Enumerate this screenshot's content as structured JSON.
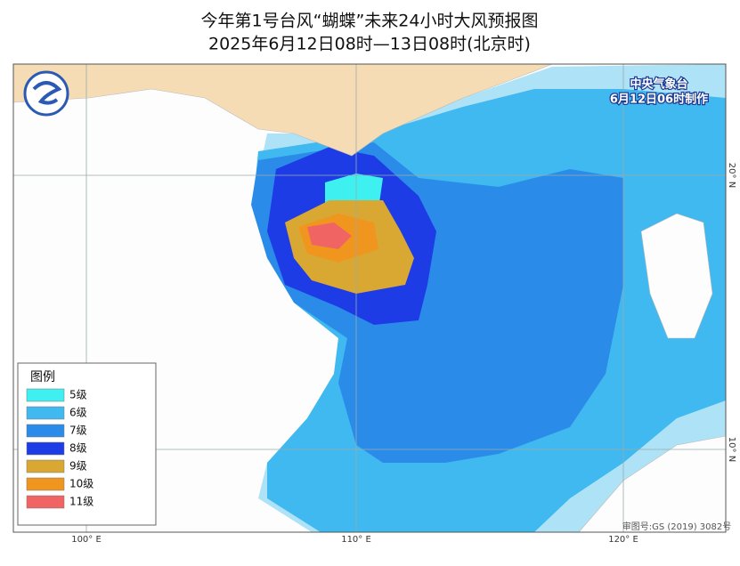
{
  "header": {
    "title": "今年第1号台风“蝴蝶”未来24小时大风预报图",
    "subtitle": "2025年6月12日08时—13日08时(北京时)",
    "agency": "中央气象台",
    "issued": "6月12日06时制作"
  },
  "legend": {
    "title": "图例",
    "items": [
      {
        "label": "5级",
        "color": "#3ff0f0"
      },
      {
        "label": "6级",
        "color": "#40b8f0"
      },
      {
        "label": "7级",
        "color": "#2a8ce8"
      },
      {
        "label": "8级",
        "color": "#1e3ce6"
      },
      {
        "label": "9级",
        "color": "#d9a832"
      },
      {
        "label": "10级",
        "color": "#f0961e"
      },
      {
        "label": "11级",
        "color": "#f06464"
      }
    ]
  },
  "grid_labels": [
    "100° E",
    "110° E",
    "120° E",
    "20° N",
    "10° N"
  ],
  "footer": {
    "approval": "审图号:GS (2019) 3082号"
  }
}
